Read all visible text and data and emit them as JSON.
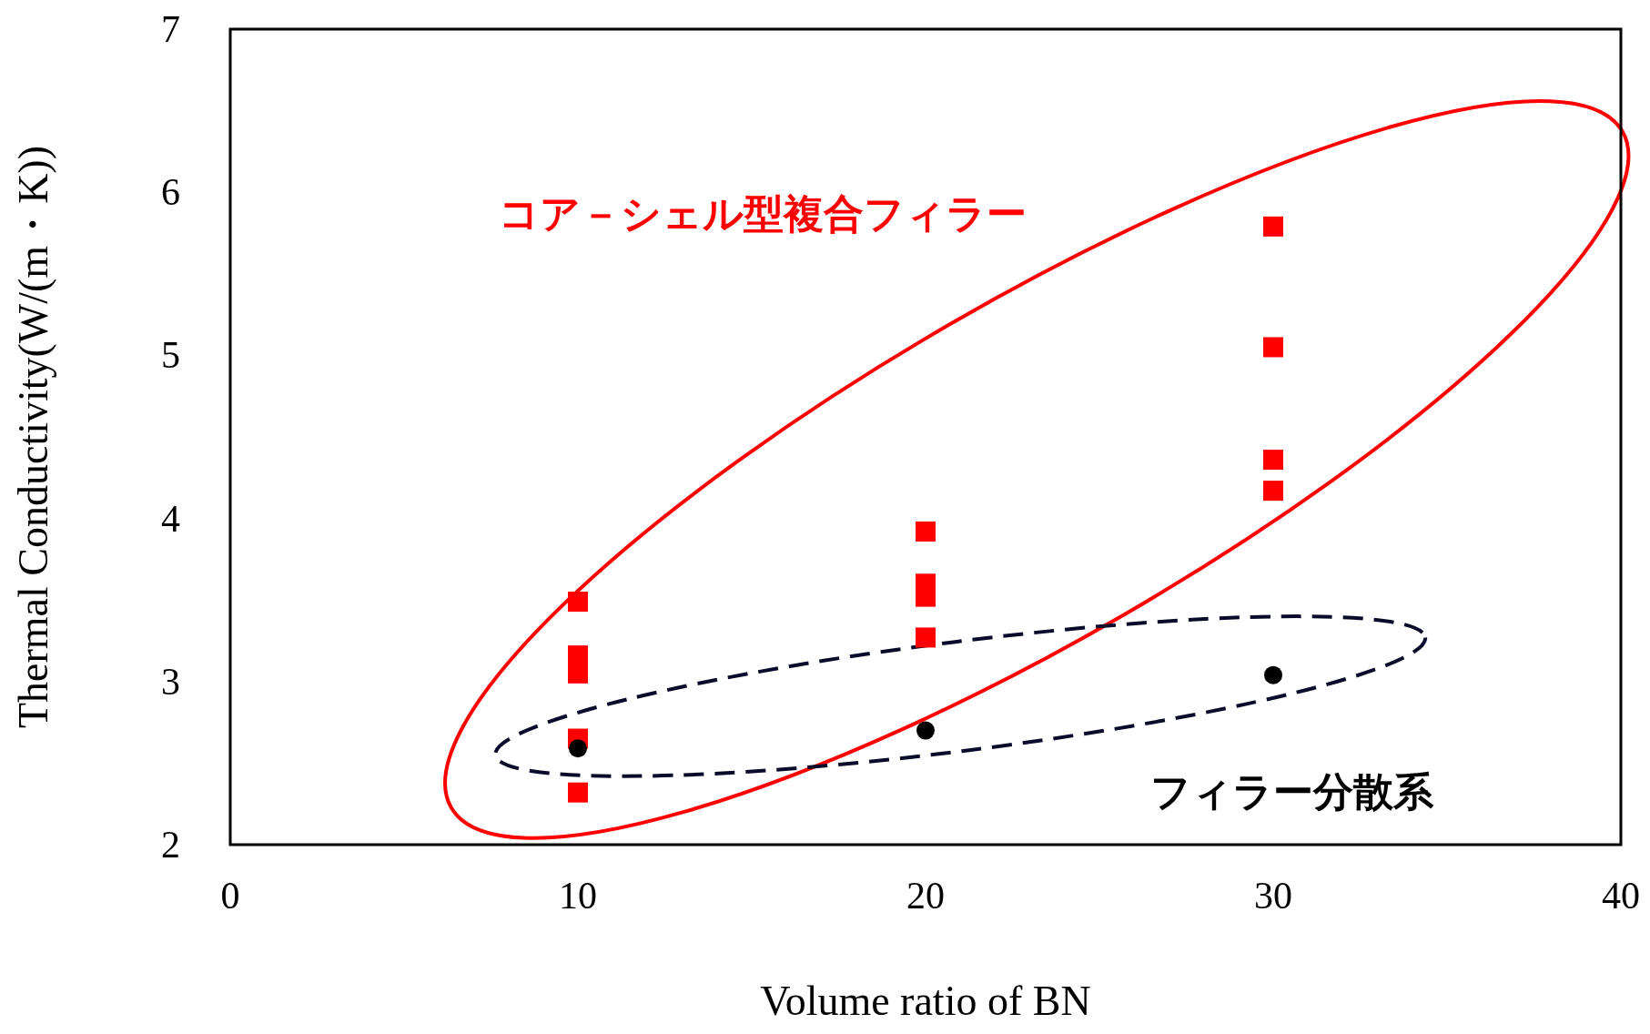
{
  "chart_data": {
    "type": "scatter",
    "xlabel": "Volume ratio of BN",
    "ylabel": "Thermal Conductivity(W/(m・K))",
    "xlim": [
      0,
      40
    ],
    "xticks": [
      0,
      10,
      20,
      30,
      40
    ],
    "ylim": [
      2,
      7
    ],
    "yticks": [
      2,
      3,
      4,
      5,
      6,
      7
    ],
    "grid": false,
    "series": [
      {
        "color": "#ff0000",
        "marker": "square",
        "x": [
          10,
          10,
          10,
          10,
          10,
          20,
          20,
          20,
          20,
          30,
          30,
          30,
          30
        ],
        "values": [
          3.49,
          3.16,
          3.05,
          2.65,
          2.32,
          3.92,
          3.6,
          3.52,
          3.27,
          5.79,
          5.05,
          4.36,
          4.17
        ]
      },
      {
        "color": "#000000",
        "marker": "circle",
        "x": [
          10,
          20,
          30
        ],
        "values": [
          2.59,
          2.7,
          3.04
        ]
      }
    ],
    "annotations": [
      "コア－シェル型複合フィラー",
      "フィラー分散系"
    ]
  }
}
